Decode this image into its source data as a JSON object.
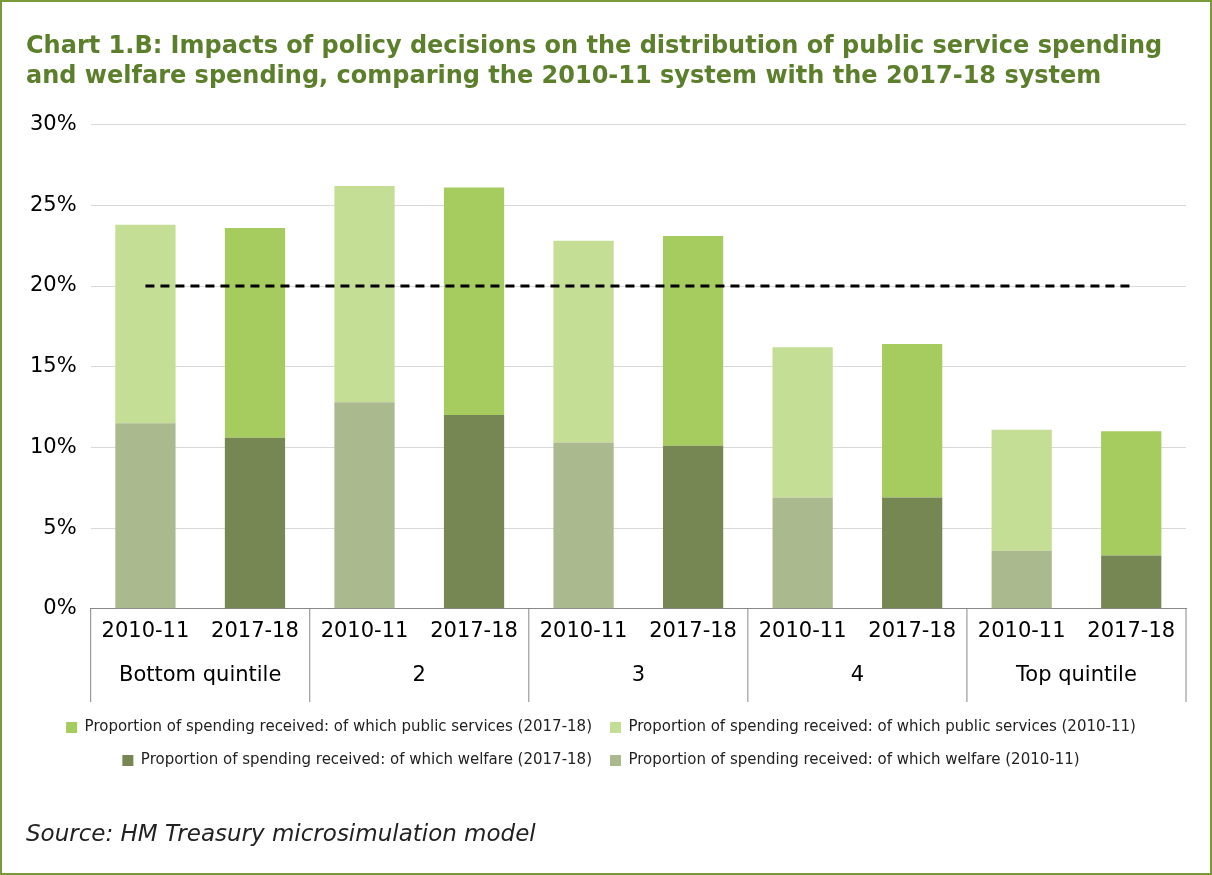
{
  "chart_data": {
    "type": "bar",
    "title": "Chart 1.B: Impacts of policy decisions on the distribution of public service spending and welfare spending, comparing the 2010-11 system with the 2017-18 system",
    "categories": [
      "2010-11",
      "2017-18",
      "2010-11",
      "2017-18",
      "2010-11",
      "2017-18",
      "2010-11",
      "2017-18",
      "2010-11",
      "2017-18"
    ],
    "series": [
      {
        "name": "Proportion of spending received: of which welfare (2010-11)",
        "color": "#abb98f",
        "values": [
          11.5,
          null,
          12.8,
          null,
          10.3,
          null,
          6.9,
          null,
          3.6,
          null
        ]
      },
      {
        "name": "Proportion of spending received: of which welfare (2017-18)",
        "color": "#768754",
        "values": [
          null,
          10.6,
          null,
          12.0,
          null,
          10.1,
          null,
          6.9,
          null,
          3.3
        ]
      },
      {
        "name": "Proportion of spending received: of which public services (2010-11)",
        "color": "#c5de95",
        "values": [
          12.3,
          null,
          13.4,
          null,
          12.5,
          null,
          9.3,
          null,
          7.5,
          null
        ]
      },
      {
        "name": "Proportion of spending received: of which public services (2017-18)",
        "color": "#a6cb5f",
        "values": [
          null,
          13.0,
          null,
          14.1,
          null,
          13.0,
          null,
          9.5,
          null,
          7.7
        ]
      }
    ],
    "stacked": true,
    "ylim": [
      0,
      30
    ],
    "yticks": [
      {
        "value": 0,
        "label": "0%"
      },
      {
        "value": 5,
        "label": "5%"
      },
      {
        "value": 10,
        "label": "10%"
      },
      {
        "value": 15,
        "label": "15%"
      },
      {
        "value": 20,
        "label": "20%"
      },
      {
        "value": 25,
        "label": "25%"
      },
      {
        "value": 30,
        "label": "30%"
      }
    ],
    "ref_lines": [
      {
        "axis": "y",
        "value": 20,
        "color": "#000000",
        "line_style": "dashed"
      }
    ],
    "grid": "y",
    "legend": "bottom",
    "annotations": [
      "Bottom quintile",
      "2",
      "3",
      "4",
      "Top quintile",
      "Source: HM Treasury microsimulation model"
    ]
  }
}
